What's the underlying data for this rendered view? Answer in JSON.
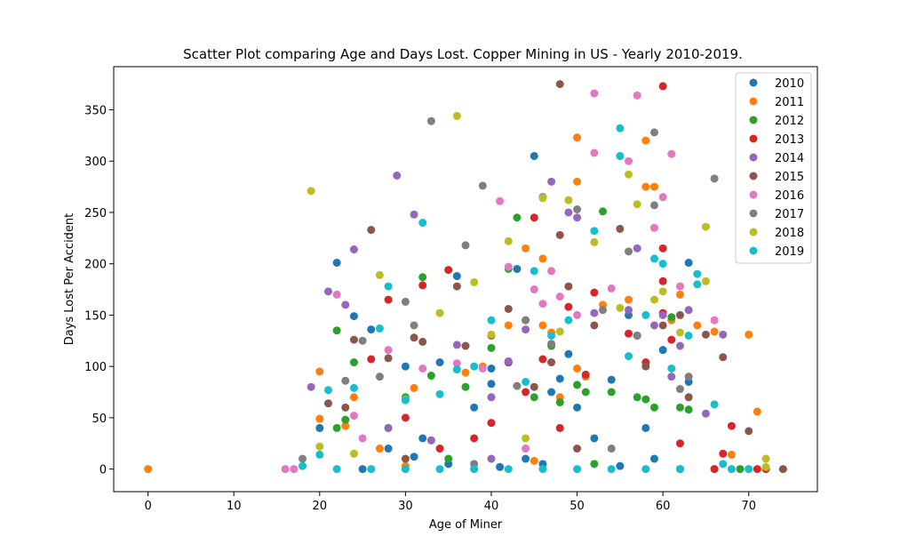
{
  "chart_data": {
    "type": "scatter",
    "title": "Scatter Plot comparing Age and Days Lost. Copper Mining in US - Yearly 2010-2019.",
    "xlabel": "Age of Miner",
    "ylabel": "Days Lost Per Accident",
    "xlim": [
      -4,
      78
    ],
    "ylim": [
      -22,
      392
    ],
    "xticks": [
      0,
      10,
      20,
      30,
      40,
      50,
      60,
      70
    ],
    "yticks": [
      0,
      50,
      100,
      150,
      200,
      250,
      300,
      350
    ],
    "legend_position": "top-right",
    "grid": false,
    "series": [
      {
        "name": "2010",
        "color": "#1f77b4",
        "points": [
          [
            20,
            40
          ],
          [
            22,
            201
          ],
          [
            24,
            149
          ],
          [
            26,
            136
          ],
          [
            30,
            100
          ],
          [
            32,
            30
          ],
          [
            34,
            104
          ],
          [
            36,
            188
          ],
          [
            38,
            60
          ],
          [
            40,
            83
          ],
          [
            40,
            98
          ],
          [
            42,
            104
          ],
          [
            43,
            195
          ],
          [
            44,
            10
          ],
          [
            45,
            305
          ],
          [
            46,
            5
          ],
          [
            47,
            75
          ],
          [
            48,
            88
          ],
          [
            49,
            112
          ],
          [
            50,
            60
          ],
          [
            52,
            30
          ],
          [
            54,
            87
          ],
          [
            56,
            150
          ],
          [
            58,
            40
          ],
          [
            59,
            10
          ],
          [
            60,
            116
          ],
          [
            63,
            201
          ],
          [
            63,
            85
          ],
          [
            28,
            20
          ],
          [
            31,
            12
          ],
          [
            25,
            0
          ],
          [
            35,
            5
          ],
          [
            41,
            2
          ],
          [
            55,
            3
          ],
          [
            62,
            0
          ]
        ]
      },
      {
        "name": "2011",
        "color": "#ff7f0e",
        "points": [
          [
            0,
            0
          ],
          [
            20,
            95
          ],
          [
            20,
            49
          ],
          [
            23,
            42
          ],
          [
            24,
            70
          ],
          [
            27,
            20
          ],
          [
            31,
            79
          ],
          [
            33,
            28
          ],
          [
            37,
            94
          ],
          [
            39,
            100
          ],
          [
            42,
            140
          ],
          [
            44,
            215
          ],
          [
            46,
            205
          ],
          [
            46,
            140
          ],
          [
            47,
            133
          ],
          [
            48,
            70
          ],
          [
            50,
            323
          ],
          [
            50,
            280
          ],
          [
            50,
            98
          ],
          [
            51,
            90
          ],
          [
            53,
            160
          ],
          [
            56,
            165
          ],
          [
            58,
            320
          ],
          [
            58,
            275
          ],
          [
            59,
            275
          ],
          [
            61,
            145
          ],
          [
            62,
            170
          ],
          [
            64,
            140
          ],
          [
            66,
            134
          ],
          [
            68,
            14
          ],
          [
            70,
            131
          ],
          [
            71,
            56
          ],
          [
            66,
            0
          ],
          [
            30,
            3
          ],
          [
            45,
            8
          ]
        ]
      },
      {
        "name": "2012",
        "color": "#2ca02c",
        "points": [
          [
            22,
            135
          ],
          [
            22,
            40
          ],
          [
            23,
            48
          ],
          [
            24,
            104
          ],
          [
            28,
            40
          ],
          [
            30,
            70
          ],
          [
            32,
            187
          ],
          [
            33,
            91
          ],
          [
            37,
            80
          ],
          [
            40,
            118
          ],
          [
            42,
            195
          ],
          [
            43,
            245
          ],
          [
            44,
            145
          ],
          [
            45,
            70
          ],
          [
            47,
            120
          ],
          [
            48,
            65
          ],
          [
            50,
            82
          ],
          [
            51,
            75
          ],
          [
            53,
            251
          ],
          [
            54,
            75
          ],
          [
            57,
            70
          ],
          [
            58,
            68
          ],
          [
            59,
            60
          ],
          [
            61,
            148
          ],
          [
            62,
            60
          ],
          [
            63,
            58
          ],
          [
            69,
            0
          ],
          [
            70,
            0
          ],
          [
            35,
            10
          ],
          [
            52,
            5
          ]
        ]
      },
      {
        "name": "2013",
        "color": "#d62728",
        "points": [
          [
            26,
            107
          ],
          [
            28,
            165
          ],
          [
            30,
            50
          ],
          [
            32,
            179
          ],
          [
            35,
            194
          ],
          [
            38,
            30
          ],
          [
            40,
            45
          ],
          [
            42,
            104
          ],
          [
            44,
            75
          ],
          [
            45,
            245
          ],
          [
            46,
            107
          ],
          [
            49,
            158
          ],
          [
            51,
            92
          ],
          [
            52,
            172
          ],
          [
            56,
            132
          ],
          [
            58,
            104
          ],
          [
            60,
            373
          ],
          [
            60,
            215
          ],
          [
            60,
            183
          ],
          [
            60,
            152
          ],
          [
            61,
            126
          ],
          [
            62,
            25
          ],
          [
            66,
            0
          ],
          [
            67,
            15
          ],
          [
            68,
            42
          ],
          [
            71,
            0
          ],
          [
            72,
            0
          ],
          [
            48,
            40
          ],
          [
            34,
            20
          ]
        ]
      },
      {
        "name": "2014",
        "color": "#9467bd",
        "points": [
          [
            19,
            80
          ],
          [
            21,
            173
          ],
          [
            23,
            160
          ],
          [
            24,
            214
          ],
          [
            28,
            40
          ],
          [
            29,
            286
          ],
          [
            31,
            248
          ],
          [
            33,
            28
          ],
          [
            36,
            121
          ],
          [
            40,
            70
          ],
          [
            42,
            105
          ],
          [
            44,
            136
          ],
          [
            47,
            280
          ],
          [
            49,
            250
          ],
          [
            50,
            245
          ],
          [
            52,
            152
          ],
          [
            56,
            155
          ],
          [
            57,
            215
          ],
          [
            59,
            140
          ],
          [
            60,
            150
          ],
          [
            61,
            90
          ],
          [
            62,
            120
          ],
          [
            63,
            155
          ],
          [
            65,
            54
          ],
          [
            67,
            131
          ],
          [
            40,
            10
          ]
        ]
      },
      {
        "name": "2015",
        "color": "#8c564b",
        "points": [
          [
            21,
            64
          ],
          [
            23,
            60
          ],
          [
            24,
            126
          ],
          [
            26,
            233
          ],
          [
            28,
            108
          ],
          [
            31,
            128
          ],
          [
            32,
            124
          ],
          [
            36,
            178
          ],
          [
            37,
            120
          ],
          [
            40,
            130
          ],
          [
            42,
            156
          ],
          [
            45,
            80
          ],
          [
            47,
            104
          ],
          [
            48,
            375
          ],
          [
            48,
            228
          ],
          [
            49,
            178
          ],
          [
            52,
            140
          ],
          [
            55,
            234
          ],
          [
            57,
            130
          ],
          [
            58,
            100
          ],
          [
            60,
            140
          ],
          [
            62,
            150
          ],
          [
            63,
            70
          ],
          [
            65,
            131
          ],
          [
            67,
            109
          ],
          [
            70,
            37
          ],
          [
            74,
            0
          ],
          [
            30,
            10
          ],
          [
            50,
            20
          ]
        ]
      },
      {
        "name": "2016",
        "color": "#e377c2",
        "points": [
          [
            16,
            0
          ],
          [
            17,
            0
          ],
          [
            22,
            170
          ],
          [
            24,
            52
          ],
          [
            28,
            116
          ],
          [
            32,
            98
          ],
          [
            36,
            103
          ],
          [
            39,
            98
          ],
          [
            41,
            261
          ],
          [
            42,
            197
          ],
          [
            45,
            175
          ],
          [
            46,
            161
          ],
          [
            47,
            193
          ],
          [
            48,
            168
          ],
          [
            50,
            150
          ],
          [
            52,
            366
          ],
          [
            52,
            308
          ],
          [
            54,
            176
          ],
          [
            55,
            305
          ],
          [
            56,
            300
          ],
          [
            57,
            364
          ],
          [
            59,
            235
          ],
          [
            60,
            265
          ],
          [
            61,
            307
          ],
          [
            62,
            178
          ],
          [
            66,
            145
          ],
          [
            25,
            30
          ],
          [
            44,
            20
          ]
        ]
      },
      {
        "name": "2017",
        "color": "#7f7f7f",
        "points": [
          [
            18,
            10
          ],
          [
            23,
            86
          ],
          [
            25,
            125
          ],
          [
            27,
            90
          ],
          [
            30,
            163
          ],
          [
            31,
            140
          ],
          [
            33,
            339
          ],
          [
            37,
            218
          ],
          [
            39,
            276
          ],
          [
            43,
            81
          ],
          [
            44,
            145
          ],
          [
            46,
            265
          ],
          [
            47,
            122
          ],
          [
            50,
            253
          ],
          [
            53,
            155
          ],
          [
            56,
            212
          ],
          [
            57,
            130
          ],
          [
            59,
            328
          ],
          [
            59,
            257
          ],
          [
            62,
            78
          ],
          [
            63,
            90
          ],
          [
            66,
            283
          ],
          [
            54,
            20
          ],
          [
            38,
            5
          ]
        ]
      },
      {
        "name": "2018",
        "color": "#bcbd22",
        "points": [
          [
            19,
            271
          ],
          [
            20,
            22
          ],
          [
            27,
            189
          ],
          [
            30,
            68
          ],
          [
            34,
            152
          ],
          [
            36,
            344
          ],
          [
            38,
            182
          ],
          [
            40,
            131
          ],
          [
            42,
            222
          ],
          [
            46,
            264
          ],
          [
            48,
            134
          ],
          [
            49,
            262
          ],
          [
            52,
            221
          ],
          [
            55,
            157
          ],
          [
            56,
            287
          ],
          [
            57,
            258
          ],
          [
            59,
            165
          ],
          [
            60,
            173
          ],
          [
            62,
            133
          ],
          [
            65,
            236
          ],
          [
            65,
            183
          ],
          [
            72,
            10
          ],
          [
            72,
            2
          ],
          [
            24,
            15
          ],
          [
            44,
            30
          ]
        ]
      },
      {
        "name": "2019",
        "color": "#17becf",
        "points": [
          [
            18,
            3
          ],
          [
            20,
            14
          ],
          [
            21,
            77
          ],
          [
            24,
            79
          ],
          [
            27,
            137
          ],
          [
            28,
            178
          ],
          [
            30,
            67
          ],
          [
            32,
            240
          ],
          [
            34,
            73
          ],
          [
            36,
            97
          ],
          [
            38,
            100
          ],
          [
            40,
            145
          ],
          [
            44,
            85
          ],
          [
            45,
            193
          ],
          [
            47,
            130
          ],
          [
            49,
            145
          ],
          [
            52,
            232
          ],
          [
            55,
            332
          ],
          [
            55,
            305
          ],
          [
            56,
            110
          ],
          [
            58,
            150
          ],
          [
            59,
            205
          ],
          [
            60,
            200
          ],
          [
            61,
            98
          ],
          [
            63,
            130
          ],
          [
            64,
            190
          ],
          [
            64,
            180
          ],
          [
            66,
            63
          ],
          [
            67,
            5
          ],
          [
            68,
            0
          ],
          [
            70,
            0
          ],
          [
            22,
            0
          ],
          [
            26,
            0
          ],
          [
            30,
            0
          ],
          [
            34,
            0
          ],
          [
            38,
            0
          ],
          [
            42,
            0
          ],
          [
            46,
            0
          ],
          [
            50,
            0
          ],
          [
            54,
            0
          ],
          [
            58,
            0
          ],
          [
            62,
            0
          ]
        ]
      }
    ]
  }
}
